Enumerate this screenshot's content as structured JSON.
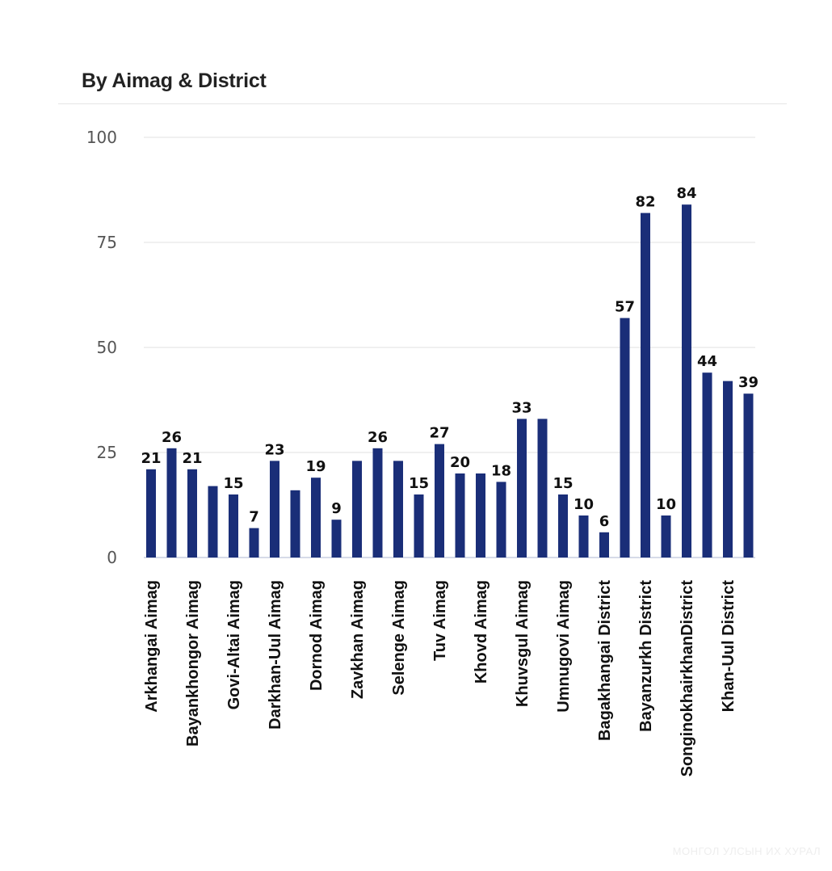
{
  "header": {
    "title": "By Aimag & District"
  },
  "watermark": {
    "text": "МОНГОЛ УЛСЫН ИХ ХУРАЛ"
  },
  "colors": {
    "bar": "#1a2e78",
    "grid": "#e0e0e0",
    "axis_text": "#555555"
  },
  "chart_data": {
    "type": "bar",
    "title": "By Aimag & District",
    "xlabel": "",
    "ylabel": "",
    "ylim": [
      0,
      100
    ],
    "yticks": [
      0,
      25,
      50,
      75,
      100
    ],
    "grid": true,
    "categories": [
      "Arkhangai Aimag",
      "Bayankhongor Aimag",
      "Govi-Altai Aimag",
      "Darkhan-Uul Aimag",
      "Dornod Aimag",
      "Zavkhan Aimag",
      "Selenge Aimag",
      "Tuv Aimag",
      "Khovd Aimag",
      "Khuvsgul Aimag",
      "Umnugovi Aimag",
      "Bagakhangai District",
      "Bayanzurkh District",
      "SonginokhairkhanDistrict",
      "Khan-Uul District"
    ],
    "bars": [
      {
        "value": 21,
        "label": "21"
      },
      {
        "value": 26,
        "label": "26"
      },
      {
        "value": 21,
        "label": "21"
      },
      {
        "value": 17,
        "label": ""
      },
      {
        "value": 15,
        "label": "15"
      },
      {
        "value": 7,
        "label": "7"
      },
      {
        "value": 23,
        "label": "23"
      },
      {
        "value": 16,
        "label": ""
      },
      {
        "value": 19,
        "label": "19"
      },
      {
        "value": 9,
        "label": "9"
      },
      {
        "value": 23,
        "label": ""
      },
      {
        "value": 26,
        "label": "26"
      },
      {
        "value": 23,
        "label": ""
      },
      {
        "value": 15,
        "label": "15"
      },
      {
        "value": 27,
        "label": "27"
      },
      {
        "value": 20,
        "label": "20"
      },
      {
        "value": 20,
        "label": ""
      },
      {
        "value": 18,
        "label": "18"
      },
      {
        "value": 33,
        "label": "33"
      },
      {
        "value": 33,
        "label": ""
      },
      {
        "value": 15,
        "label": "15"
      },
      {
        "value": 10,
        "label": "10"
      },
      {
        "value": 6,
        "label": "6"
      },
      {
        "value": 57,
        "label": "57"
      },
      {
        "value": 82,
        "label": "82"
      },
      {
        "value": 10,
        "label": "10"
      },
      {
        "value": 84,
        "label": "84"
      },
      {
        "value": 44,
        "label": "44"
      },
      {
        "value": 42,
        "label": ""
      },
      {
        "value": 39,
        "label": "39"
      }
    ]
  }
}
